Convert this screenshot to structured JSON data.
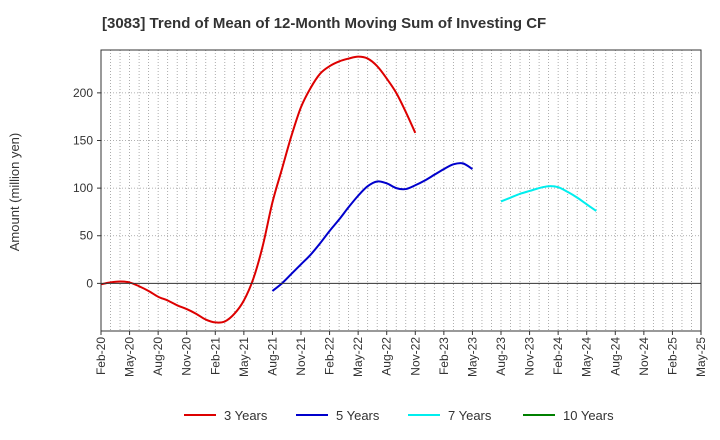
{
  "chart_data": {
    "type": "line",
    "title": "[3083]  Trend of Mean of 12-Month Moving Sum of Investing CF",
    "ylabel": "Amount (million yen)",
    "xlabel": "",
    "ylim": [
      -50,
      245
    ],
    "yticks": [
      0,
      50,
      100,
      150,
      200
    ],
    "x_ticks": [
      "Feb-20",
      "May-20",
      "Aug-20",
      "Nov-20",
      "Feb-21",
      "May-21",
      "Aug-21",
      "Nov-21",
      "Feb-22",
      "May-22",
      "Aug-22",
      "Nov-22",
      "Feb-23",
      "May-23",
      "Aug-23",
      "Nov-23",
      "Feb-24",
      "May-24",
      "Aug-24",
      "Nov-24",
      "Feb-25",
      "May-25"
    ],
    "x_start": "Feb-20",
    "grid": true,
    "legend_position": "bottom",
    "series": [
      {
        "name": "3 Years",
        "color": "#dd0000",
        "start_index": 0,
        "values": [
          -1,
          1,
          2,
          1,
          -3,
          -8,
          -14,
          -18,
          -23,
          -27,
          -32,
          -38,
          -41,
          -40,
          -32,
          -18,
          5,
          40,
          85,
          120,
          155,
          185,
          205,
          220,
          228,
          233,
          236,
          238,
          236,
          228,
          215,
          200,
          180,
          158
        ]
      },
      {
        "name": "5 Years",
        "color": "#0000cc",
        "start_index": 18,
        "values": [
          -8,
          0,
          10,
          20,
          30,
          42,
          55,
          67,
          80,
          92,
          102,
          107,
          105,
          100,
          99,
          103,
          108,
          114,
          120,
          125,
          126,
          120
        ]
      },
      {
        "name": "7 Years",
        "color": "#00eeee",
        "start_index": 42,
        "values": [
          86,
          90,
          94,
          97,
          100,
          102,
          101,
          96,
          90,
          83,
          76
        ]
      },
      {
        "name": "10 Years",
        "color": "#008000",
        "start_index": 0,
        "values": []
      }
    ]
  }
}
